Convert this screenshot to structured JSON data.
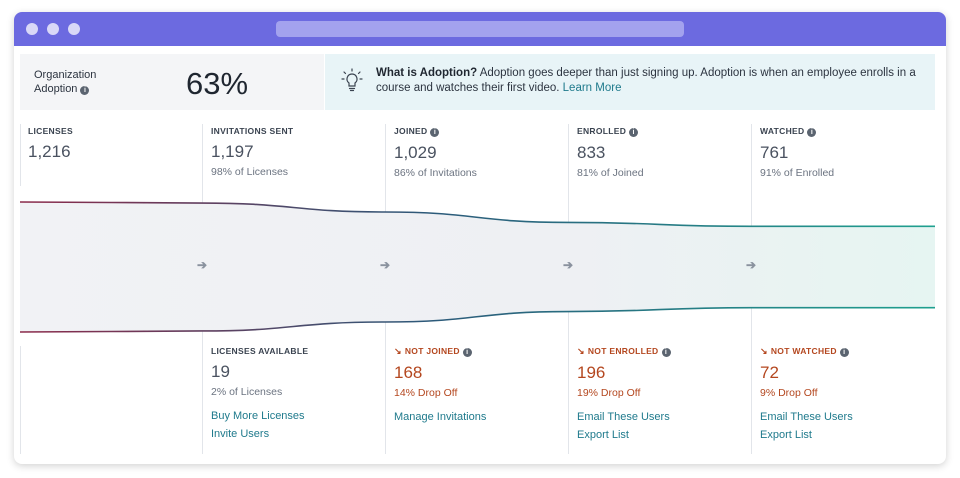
{
  "summary": {
    "label": "Organization Adoption",
    "value": "63%"
  },
  "callout": {
    "title": "What is Adoption?",
    "body": " Adoption goes deeper than just signing up. Adoption is when an employee enrolls in a course and watches their first video. ",
    "link": "Learn More"
  },
  "stages": [
    {
      "head": "LICENSES",
      "value": "1,216",
      "sub": ""
    },
    {
      "head": "INVITATIONS SENT",
      "value": "1,197",
      "sub": "98% of Licenses"
    },
    {
      "head": "JOINED",
      "value": "1,029",
      "sub": "86% of Invitations"
    },
    {
      "head": "ENROLLED",
      "value": "833",
      "sub": "81% of Joined"
    },
    {
      "head": "WATCHED",
      "value": "761",
      "sub": "91% of Enrolled"
    }
  ],
  "bottom": [
    {
      "head": "LICENSES AVAILABLE",
      "value": "19",
      "sub": "2% of Licenses",
      "links": [
        "Buy More Licenses",
        "Invite Users"
      ]
    },
    {
      "head": "NOT JOINED",
      "value": "168",
      "sub": "14% Drop Off",
      "links": [
        "Manage Invitations"
      ]
    },
    {
      "head": "NOT ENROLLED",
      "value": "196",
      "sub": "19% Drop Off",
      "links": [
        "Email These Users",
        "Export List"
      ]
    },
    {
      "head": "NOT WATCHED",
      "value": "72",
      "sub": "9% Drop Off",
      "links": [
        "Email These Users",
        "Export List"
      ]
    }
  ],
  "funnel_levels": [
    1216,
    1197,
    1029,
    833,
    761
  ],
  "colors": {
    "accent": "#6c6ae0",
    "link": "#1f7a8c",
    "dropoff": "#b4471f",
    "funnel_start": "#8b2a4a",
    "funnel_mid": "#2c5a7a",
    "funnel_end": "#1fa08f"
  }
}
